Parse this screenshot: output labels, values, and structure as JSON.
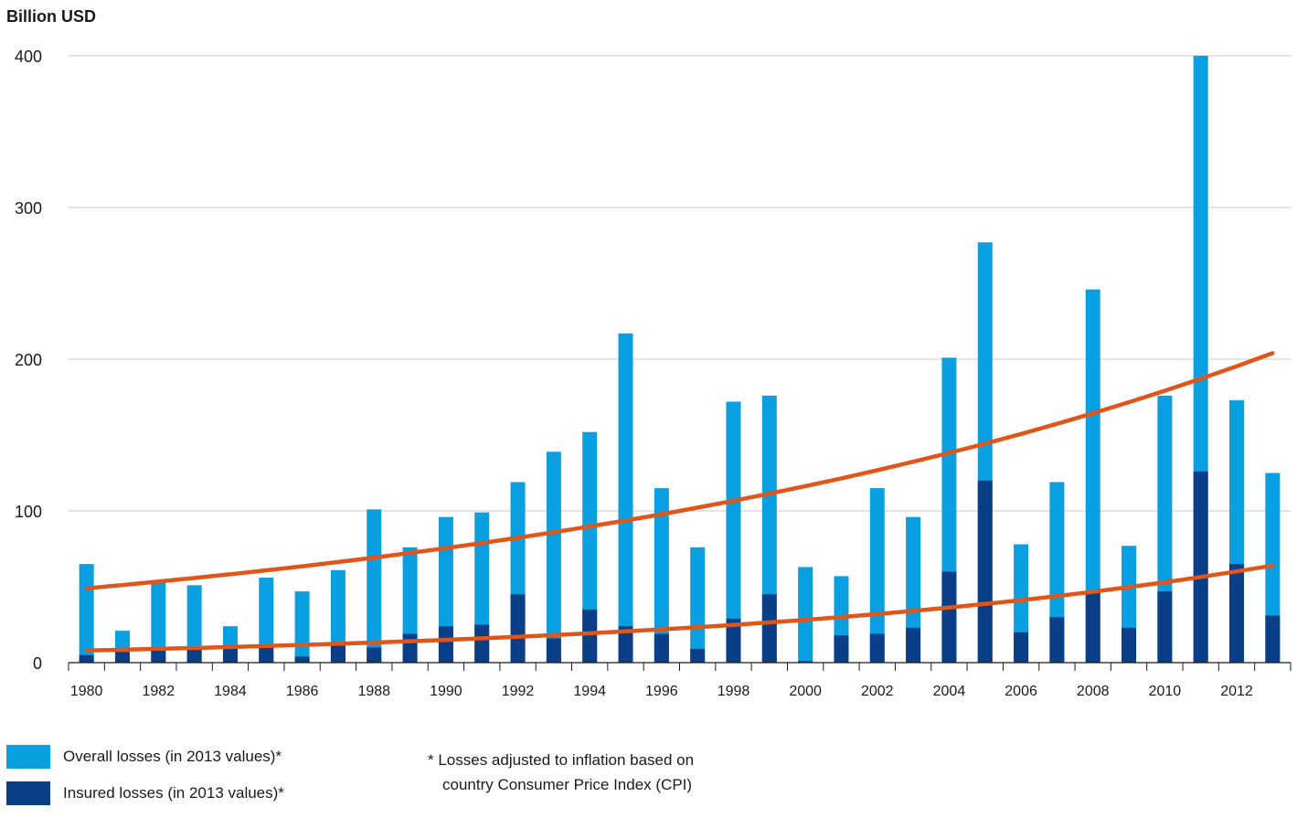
{
  "chart_data": {
    "type": "bar",
    "stacking": "overlay",
    "ylabel": "Billion USD",
    "ylim": [
      0,
      400
    ],
    "yticks": [
      0,
      100,
      200,
      300,
      400
    ],
    "grid": true,
    "x": [
      1980,
      1981,
      1982,
      1983,
      1984,
      1985,
      1986,
      1987,
      1988,
      1989,
      1990,
      1991,
      1992,
      1993,
      1994,
      1995,
      1996,
      1997,
      1998,
      1999,
      2000,
      2001,
      2002,
      2003,
      2004,
      2005,
      2006,
      2007,
      2008,
      2009,
      2010,
      2011,
      2012,
      2013
    ],
    "xtick_labels": [
      "1980",
      "1982",
      "1984",
      "1986",
      "1988",
      "1990",
      "1992",
      "1994",
      "1996",
      "1998",
      "2000",
      "2002",
      "2004",
      "2006",
      "2008",
      "2010",
      "2012"
    ],
    "series": [
      {
        "name": "Overall losses (in 2013 values)*",
        "color": "#0a9fe0",
        "values": [
          65,
          21,
          53,
          51,
          24,
          56,
          47,
          61,
          101,
          76,
          96,
          99,
          119,
          139,
          152,
          217,
          115,
          76,
          172,
          176,
          63,
          57,
          115,
          96,
          201,
          277,
          78,
          119,
          246,
          77,
          176,
          400,
          173,
          125
        ]
      },
      {
        "name": "Insured losses (in 2013 values)*",
        "color": "#0a3f88",
        "values": [
          5,
          7,
          8,
          9,
          10,
          11,
          4,
          13,
          10,
          19,
          24,
          25,
          45,
          16,
          35,
          24,
          19,
          9,
          29,
          45,
          1,
          18,
          19,
          23,
          60,
          120,
          20,
          30,
          46,
          23,
          47,
          126,
          65,
          31
        ]
      }
    ],
    "trendlines": [
      {
        "series": "Overall losses (in 2013 values)*",
        "color": "#e0551a",
        "start": 49,
        "end": 204
      },
      {
        "series": "Insured losses (in 2013 values)*",
        "color": "#e0551a",
        "start": 8,
        "end": 64
      }
    ],
    "legend_position": "bottom-left"
  },
  "legend": {
    "overall_label": "Overall losses (in 2013 values)*",
    "insured_label": "Insured losses (in 2013 values)*"
  },
  "footnote": {
    "line1": "* Losses adjusted to inflation based on",
    "line2": "country Consumer Price Index (CPI)"
  }
}
